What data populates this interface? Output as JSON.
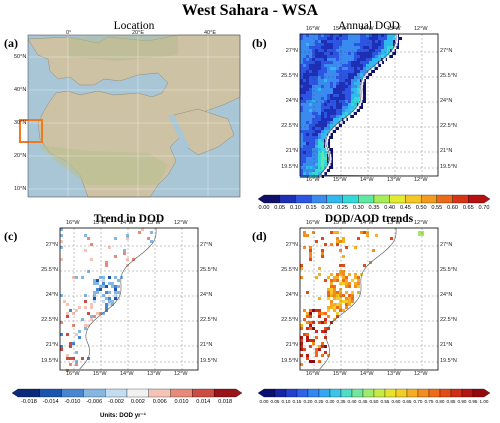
{
  "title": "West Sahara - WSA",
  "panels": {
    "a": {
      "label": "(a)",
      "title": "Location",
      "lon_ticks": [
        "0°",
        "20°E",
        "40°E"
      ],
      "lat_ticks": [
        "50°N",
        "40°N",
        "30°N",
        "20°N",
        "10°N"
      ]
    },
    "b": {
      "label": "(b)",
      "title": "Annual DOD"
    },
    "c": {
      "label": "(c)",
      "title": "Trend in DOD"
    },
    "d": {
      "label": "(d)",
      "title": "DOD/AOD trends"
    }
  },
  "map_ticks": {
    "lon": [
      "16°W",
      "15°W",
      "14°W",
      "13°W",
      "12°W"
    ],
    "lat": [
      "27°N",
      "25.5°N",
      "24°N",
      "22.5°N",
      "21°N",
      "19.5°N"
    ]
  },
  "colorbars": {
    "b": {
      "ticks": [
        "0.00",
        "0.05",
        "0.10",
        "0.15",
        "0.20",
        "0.25",
        "0.30",
        "0.35",
        "0.40",
        "0.45",
        "0.50",
        "0.55",
        "0.60",
        "0.65",
        "0.70"
      ],
      "colors": [
        "#10106a",
        "#1c2fb5",
        "#2b55e2",
        "#3a8af0",
        "#30b8ef",
        "#33d9d9",
        "#5fe8a4",
        "#a8ec5a",
        "#e2eb2e",
        "#f6c623",
        "#f49a1d",
        "#ec6a17",
        "#d93415",
        "#b80f10"
      ]
    },
    "c": {
      "ticks": [
        "-0.018",
        "-0.014",
        "-0.010",
        "-0.006",
        "-0.002",
        "0.002",
        "0.006",
        "0.010",
        "0.014",
        "0.018"
      ],
      "colors": [
        "#0b2a7a",
        "#1d54b0",
        "#4a86cf",
        "#86b6e2",
        "#c4dcf1",
        "#f1f1f1",
        "#f4c4b7",
        "#e68a7a",
        "#cd4b42",
        "#9a1318"
      ],
      "units": "Units: DOD yr⁻¹"
    },
    "d": {
      "ticks": [
        "0.00",
        "0.05",
        "0.10",
        "0.15",
        "0.20",
        "0.25",
        "0.30",
        "0.35",
        "0.40",
        "0.45",
        "0.50",
        "0.55",
        "0.60",
        "0.65",
        "0.70",
        "0.75",
        "0.80",
        "0.85",
        "0.90",
        "0.95",
        "1.00"
      ],
      "colors": [
        "#0d0e73",
        "#1724a6",
        "#2440d2",
        "#2e62ea",
        "#3386f4",
        "#35a6f2",
        "#3cc5e7",
        "#4edcc7",
        "#72e69b",
        "#9eeb6d",
        "#c5ea45",
        "#e4e42f",
        "#f4cc27",
        "#f7ad22",
        "#f58d1e",
        "#ef6b1a",
        "#e24b17",
        "#cf2d14",
        "#b51611",
        "#94090d"
      ]
    }
  },
  "colors": {
    "ocean_b": "#1f3fcf",
    "land": "#ffffff",
    "europe_land": "#cfc3a4",
    "atlantic": "#9fbfd3",
    "box": "#f07a22"
  }
}
